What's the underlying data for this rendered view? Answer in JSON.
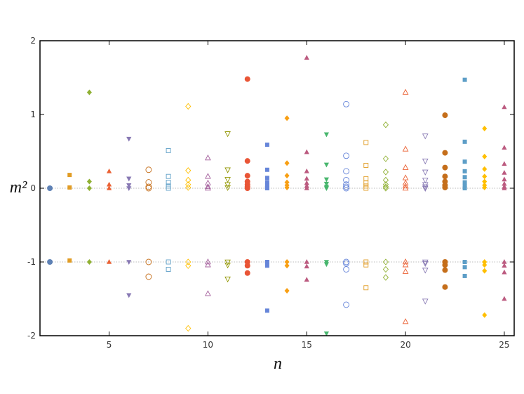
{
  "chart_data": {
    "type": "scatter",
    "xlabel": "n",
    "ylabel": "m²",
    "xlim": [
      1.5,
      25.5
    ],
    "ylim": [
      -2,
      2
    ],
    "xticks": [
      5,
      10,
      15,
      20,
      25
    ],
    "yticks": [
      -2,
      -1,
      0,
      1,
      2
    ],
    "reference_lines": [
      0,
      -1
    ],
    "series": [
      {
        "x": 2,
        "marker": "circle",
        "filled": true,
        "color": "#5e81b5",
        "values": [
          0,
          -1
        ]
      },
      {
        "x": 3,
        "marker": "square",
        "filled": true,
        "color": "#e19c24",
        "values": [
          0.18,
          0.01,
          -0.98
        ]
      },
      {
        "x": 4,
        "marker": "diamond",
        "filled": true,
        "color": "#8fb032",
        "values": [
          1.3,
          0.09,
          0,
          -1
        ]
      },
      {
        "x": 5,
        "marker": "triangle-up",
        "filled": true,
        "color": "#eb6235",
        "values": [
          0.23,
          0.05,
          0,
          -1
        ]
      },
      {
        "x": 6,
        "marker": "triangle-down",
        "filled": true,
        "color": "#8778b3",
        "values": [
          0.67,
          0.13,
          0.04,
          0,
          -1,
          -1.45
        ]
      },
      {
        "x": 7,
        "marker": "circle",
        "filled": false,
        "color": "#c56e1a",
        "values": [
          0.25,
          0.08,
          0.02,
          0,
          -1,
          -1.2
        ]
      },
      {
        "x": 8,
        "marker": "square",
        "filled": false,
        "color": "#5d9ec7",
        "values": [
          0.51,
          0.16,
          0.08,
          0.03,
          0,
          -1,
          -1.1
        ]
      },
      {
        "x": 9,
        "marker": "diamond",
        "filled": false,
        "color": "#ffbf00",
        "values": [
          1.11,
          0.24,
          0.11,
          0.05,
          0.01,
          -1,
          -1.05,
          -1.9
        ]
      },
      {
        "x": 10,
        "marker": "triangle-up",
        "filled": false,
        "color": "#a5609d",
        "values": [
          0.41,
          0.16,
          0.07,
          0.02,
          0,
          -1,
          -1.04,
          -1.43
        ]
      },
      {
        "x": 11,
        "marker": "triangle-down",
        "filled": false,
        "color": "#929600",
        "values": [
          0.74,
          0.25,
          0.12,
          0.05,
          0.01,
          -1,
          -1.04,
          -1.23
        ]
      },
      {
        "x": 12,
        "marker": "circle",
        "filled": true,
        "color": "#e95536",
        "values": [
          1.48,
          0.37,
          0.17,
          0.09,
          0.05,
          0.02,
          0,
          -1,
          -1.05,
          -1.15
        ]
      },
      {
        "x": 13,
        "marker": "square",
        "filled": true,
        "color": "#6685d9",
        "values": [
          0.59,
          0.25,
          0.14,
          0.08,
          0.04,
          0.01,
          0,
          -1,
          -1.05,
          -1.66
        ]
      },
      {
        "x": 14,
        "marker": "diamond",
        "filled": true,
        "color": "#f89f13",
        "values": [
          0.95,
          0.34,
          0.17,
          0.08,
          0.04,
          0.01,
          -1,
          -1.05,
          -1.39
        ]
      },
      {
        "x": 15,
        "marker": "triangle-up",
        "filled": true,
        "color": "#bc5b80",
        "values": [
          1.77,
          0.49,
          0.23,
          0.13,
          0.07,
          0.03,
          0,
          -1,
          -1.06,
          -1.24
        ]
      },
      {
        "x": 16,
        "marker": "triangle-down",
        "filled": true,
        "color": "#47b66d",
        "values": [
          0.73,
          0.32,
          0.12,
          0.06,
          0.02,
          0,
          -1,
          -1.03,
          -1.97
        ]
      },
      {
        "x": 17,
        "marker": "circle",
        "filled": false,
        "color": "#6685d9",
        "values": [
          1.14,
          0.44,
          0.23,
          0.11,
          0.05,
          0.02,
          0,
          -1,
          -1.02,
          -1.1,
          -1.58
        ]
      },
      {
        "x": 18,
        "marker": "square",
        "filled": false,
        "color": "#e19c24",
        "values": [
          0.62,
          0.31,
          0.13,
          0.07,
          0.03,
          0,
          -1,
          -1.04,
          -1.35
        ]
      },
      {
        "x": 19,
        "marker": "diamond",
        "filled": false,
        "color": "#8fb032",
        "values": [
          0.86,
          0.4,
          0.22,
          0.11,
          0.05,
          0.02,
          0,
          -1,
          -1.1,
          -1.21
        ]
      },
      {
        "x": 20,
        "marker": "triangle-up",
        "filled": false,
        "color": "#eb6235",
        "values": [
          1.3,
          0.53,
          0.28,
          0.14,
          0.07,
          0.03,
          0,
          -1,
          -1.04,
          -1.13,
          -1.81
        ]
      },
      {
        "x": 21,
        "marker": "triangle-down",
        "filled": false,
        "color": "#8778b3",
        "values": [
          0.71,
          0.37,
          0.22,
          0.11,
          0.05,
          0.02,
          0,
          -1,
          -1.02,
          -1.11,
          -1.53
        ]
      },
      {
        "x": 22,
        "marker": "circle",
        "filled": true,
        "color": "#c56e1a",
        "values": [
          0.99,
          0.48,
          0.28,
          0.16,
          0.09,
          0.04,
          0.01,
          -1,
          -1.04,
          -1.11,
          -1.34
        ]
      },
      {
        "x": 23,
        "marker": "square",
        "filled": true,
        "color": "#5d9ec7",
        "values": [
          1.47,
          0.63,
          0.36,
          0.23,
          0.15,
          0.08,
          0.03,
          0,
          -1,
          -1.07,
          -1.19
        ]
      },
      {
        "x": 24,
        "marker": "diamond",
        "filled": true,
        "color": "#ffbf00",
        "values": [
          0.81,
          0.43,
          0.26,
          0.16,
          0.09,
          0.04,
          0.01,
          -1,
          -1.04,
          -1.12,
          -1.72
        ]
      },
      {
        "x": 25,
        "marker": "triangle-up",
        "filled": true,
        "color": "#bc5b80",
        "values": [
          1.1,
          0.55,
          0.33,
          0.21,
          0.12,
          0.06,
          0.02,
          0,
          -1,
          -1.05,
          -1.14,
          -1.5
        ]
      }
    ]
  }
}
